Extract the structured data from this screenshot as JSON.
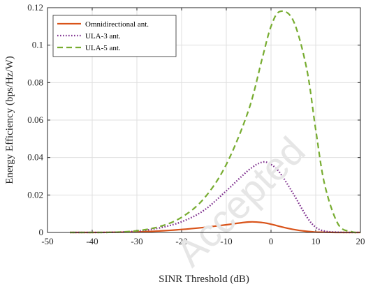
{
  "watermark": "Accepted",
  "chart_data": {
    "type": "line",
    "title": "",
    "xlabel": "SINR Threshold (dB)",
    "ylabel": "Energy Efficiency (bps/Hz/W)",
    "xlim": [
      -50,
      20
    ],
    "ylim": [
      0,
      0.12
    ],
    "x_ticks": [
      -50,
      -40,
      -30,
      -20,
      -10,
      0,
      10,
      20
    ],
    "y_ticks": [
      0,
      0.02,
      0.04,
      0.06,
      0.08,
      0.1,
      0.12
    ],
    "x_tick_labels": [
      "-50",
      "-40",
      "-30",
      "-20",
      "-10",
      "0",
      "10",
      "20"
    ],
    "y_tick_labels": [
      "0",
      "0.02",
      "0.04",
      "0.06",
      "0.08",
      "0.1",
      "0.12"
    ],
    "grid": true,
    "legend_position": "top-left",
    "x": [
      -45,
      -40,
      -35,
      -30,
      -25,
      -20,
      -15,
      -10,
      -5,
      -2,
      0,
      2,
      5,
      8,
      10,
      12,
      15,
      18,
      20
    ],
    "series": [
      {
        "name": "Omnidirectional ant.",
        "color": "#D95319",
        "dash": "solid",
        "values": [
          0,
          0,
          0.0001,
          0.0003,
          0.0008,
          0.0016,
          0.0027,
          0.0041,
          0.0056,
          0.0053,
          0.0044,
          0.0032,
          0.0016,
          0.0006,
          0.0002,
          0.0001,
          0,
          0,
          0
        ]
      },
      {
        "name": "ULA-3 ant.",
        "color": "#7E2F8E",
        "dash": "dotted",
        "values": [
          0,
          0,
          0.0001,
          0.0007,
          0.0024,
          0.0057,
          0.0118,
          0.0222,
          0.0333,
          0.0375,
          0.0363,
          0.0318,
          0.0206,
          0.0083,
          0.0028,
          0.0007,
          0.0001,
          0,
          0
        ]
      },
      {
        "name": "ULA-5 ant.",
        "color": "#77AC30",
        "dash": "dashed",
        "values": [
          0,
          0,
          0.0001,
          0.0009,
          0.0031,
          0.0081,
          0.0181,
          0.0363,
          0.0654,
          0.0926,
          0.11,
          0.118,
          0.113,
          0.0872,
          0.0549,
          0.0256,
          0.0045,
          0.0004,
          0
        ]
      }
    ]
  }
}
